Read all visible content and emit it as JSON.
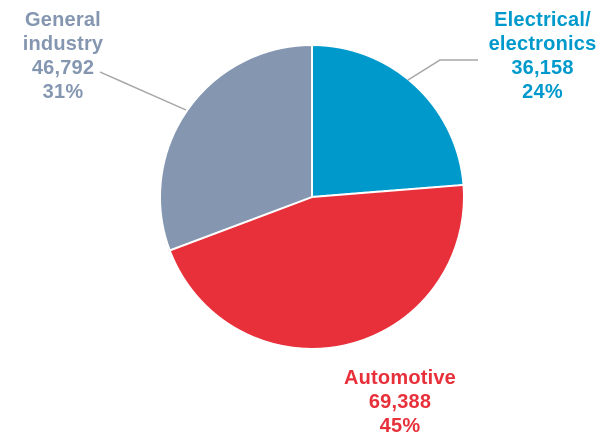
{
  "chart_data": {
    "type": "pie",
    "categories": [
      "Electrical/ electronics",
      "Automotive",
      "General industry"
    ],
    "slices": [
      {
        "name_lines": [
          "Electrical/",
          "electronics"
        ],
        "value": 36158,
        "value_label": "36,158",
        "percent": 24,
        "percent_label": "24%",
        "color": "#0099cc"
      },
      {
        "name_lines": [
          "Automotive"
        ],
        "value": 69388,
        "value_label": "69,388",
        "percent": 45,
        "percent_label": "45%",
        "color": "#e8303a"
      },
      {
        "name_lines": [
          "General",
          "industry"
        ],
        "value": 46792,
        "value_label": "46,792",
        "percent": 31,
        "percent_label": "31%",
        "color": "#8496b0"
      }
    ],
    "start_angle_deg": 0,
    "direction": "clockwise",
    "title": "",
    "legend": "none",
    "leader_lines": true
  }
}
